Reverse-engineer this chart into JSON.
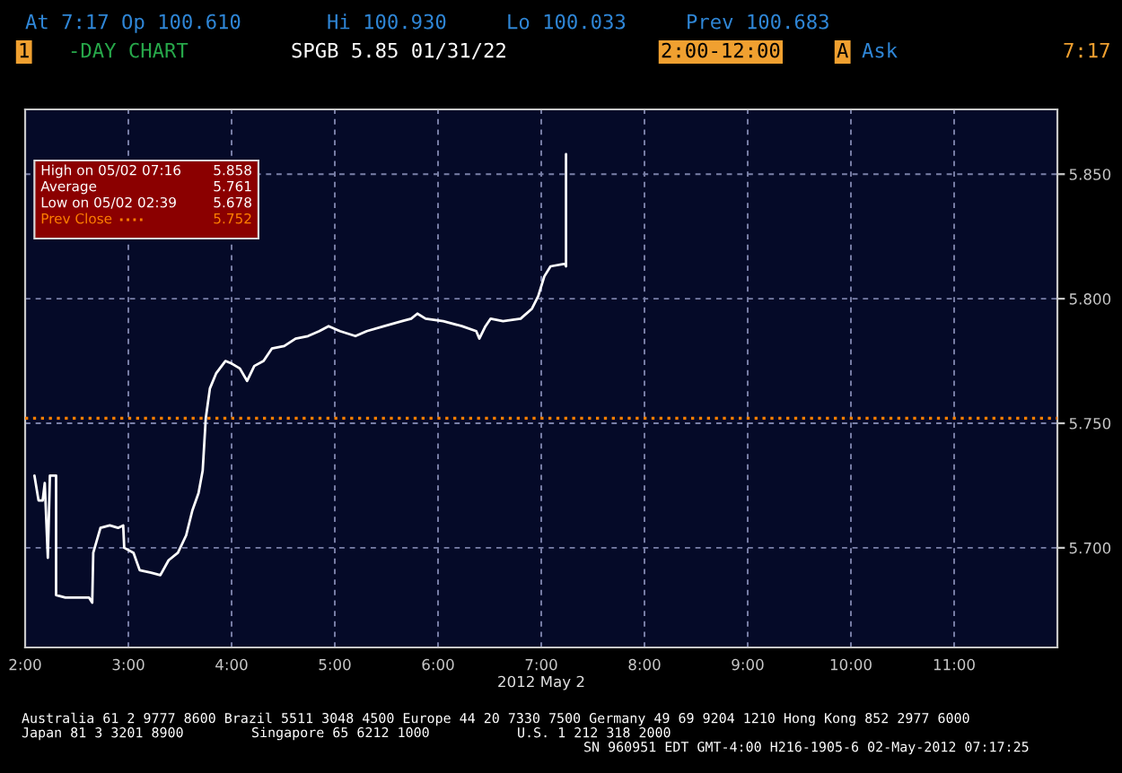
{
  "chart_data": {
    "type": "line",
    "xlabel": "2012 May 2",
    "x": [
      2.09,
      2.13,
      2.17,
      2.19,
      2.22,
      2.24,
      2.26,
      2.3,
      2.3,
      2.39,
      2.62,
      2.65,
      2.66,
      2.73,
      2.82,
      2.9,
      2.95,
      2.96,
      3.05,
      3.11,
      3.22,
      3.31,
      3.39,
      3.48,
      3.56,
      3.62,
      3.68,
      3.72,
      3.75,
      3.79,
      3.85,
      3.94,
      4.0,
      4.08,
      4.15,
      4.22,
      4.31,
      4.39,
      4.51,
      4.62,
      4.74,
      4.85,
      4.94,
      5.05,
      5.2,
      5.31,
      5.48,
      5.65,
      5.74,
      5.8,
      5.88,
      6.05,
      6.23,
      6.37,
      6.4,
      6.46,
      6.51,
      6.63,
      6.8,
      6.91,
      6.97,
      7.03,
      7.09,
      7.23,
      7.24,
      7.24
    ],
    "series": [
      {
        "color": "#ffffff",
        "values": [
          5.729,
          5.719,
          5.719,
          5.726,
          5.696,
          5.729,
          5.729,
          5.729,
          5.681,
          5.68,
          5.68,
          5.678,
          5.698,
          5.708,
          5.709,
          5.708,
          5.709,
          5.7,
          5.698,
          5.691,
          5.69,
          5.689,
          5.695,
          5.698,
          5.705,
          5.715,
          5.722,
          5.731,
          5.752,
          5.764,
          5.77,
          5.775,
          5.774,
          5.772,
          5.767,
          5.773,
          5.775,
          5.78,
          5.781,
          5.784,
          5.785,
          5.787,
          5.789,
          5.787,
          5.785,
          5.787,
          5.789,
          5.791,
          5.792,
          5.794,
          5.792,
          5.791,
          5.789,
          5.787,
          5.784,
          5.789,
          5.792,
          5.791,
          5.792,
          5.796,
          5.801,
          5.809,
          5.813,
          5.814,
          5.813,
          5.858
        ]
      }
    ],
    "xlim": [
      2,
      12
    ],
    "xticks": [
      {
        "value": 2,
        "label": "2:00"
      },
      {
        "value": 3,
        "label": "3:00"
      },
      {
        "value": 4,
        "label": "4:00"
      },
      {
        "value": 5,
        "label": "5:00"
      },
      {
        "value": 6,
        "label": "6:00"
      },
      {
        "value": 7,
        "label": "7:00"
      },
      {
        "value": 8,
        "label": "8:00"
      },
      {
        "value": 9,
        "label": "9:00"
      },
      {
        "value": 10,
        "label": "10:00"
      },
      {
        "value": 11,
        "label": "11:00"
      }
    ],
    "ylim": [
      5.66,
      5.876
    ],
    "yticks": [
      {
        "value": 5.7,
        "label": "5.700"
      },
      {
        "value": 5.75,
        "label": "5.750"
      },
      {
        "value": 5.8,
        "label": "5.800"
      },
      {
        "value": 5.85,
        "label": "5.850"
      }
    ],
    "grid": true,
    "ref_lines": [
      {
        "axis": "y",
        "value": 5.752,
        "label": "Prev Close",
        "color": "#ff7f00",
        "line_style": "dotted"
      }
    ],
    "annotations": [
      "At 7:17 Op 100.610",
      "Hi 100.930",
      "Lo 100.033",
      "Prev 100.683",
      "1",
      "-DAY CHART",
      "SPGB 5.85 01/31/22",
      "2:00-12:00",
      "A",
      "Ask",
      "7:17",
      "High on 05/02 07:16",
      "5.858",
      "Average",
      "5.761",
      "Low on 05/02 02:39",
      "5.678",
      "Australia 61 2 9777 8600 Brazil 5511 3048 4500 Europe 44 20 7330 7500 Germany 49 69 9204 1210 Hong Kong 852 2977 6000",
      "Japan 81 3 3201 8900",
      "Singapore 65 6212 1000",
      "U.S. 1 212 318 2000",
      "SN 960951 EDT GMT-4:00 H216-1905-6 02-May-2012 07:17:25",
      "5.752"
    ]
  }
}
